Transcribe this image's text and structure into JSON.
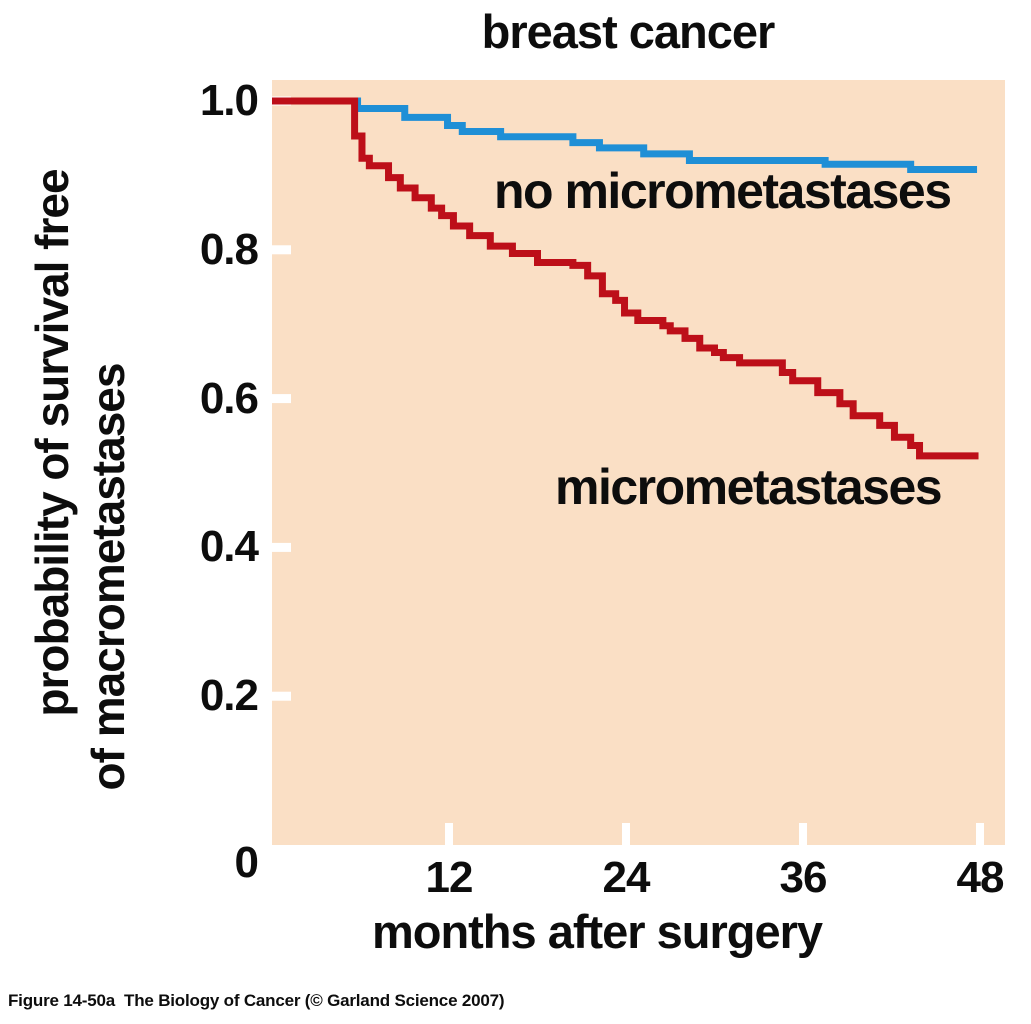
{
  "figure": {
    "title": "breast cancer",
    "caption": "Figure 14-50a  The Biology of Cancer (© Garland Science 2007)"
  },
  "chart_data": {
    "type": "line",
    "subtype": "kaplan_meier_step_survival",
    "title": "breast cancer",
    "xlabel": "months after surgery",
    "ylabel": "probability of survival free of macrometastases",
    "ylabel_lines": [
      "probability of survival free",
      "of macrometastases"
    ],
    "xlim": [
      0,
      49.7
    ],
    "ylim": [
      0,
      1.03
    ],
    "x_ticks": [
      12,
      24,
      36,
      48
    ],
    "x_tick_labels": [
      "12",
      "24",
      "36",
      "48"
    ],
    "y_ticks": [
      1.0,
      0.8,
      0.6,
      0.4,
      0.2
    ],
    "y_tick_labels": [
      "1.0",
      "0.8",
      "0.6",
      "0.4",
      "0.2"
    ],
    "origin_tick_label": "0",
    "grid": false,
    "legend_position": "inline-annotations",
    "plot_bg_color": "#fadfc5",
    "tick_mark_color": "#ffffff",
    "series": [
      {
        "name": "no micrometastases",
        "color": "#1f8fd6",
        "end_month": 47.8,
        "steps": [
          [
            0,
            1.0
          ],
          [
            5.8,
            0.99
          ],
          [
            9.0,
            0.978
          ],
          [
            11.9,
            0.967
          ],
          [
            12.9,
            0.959
          ],
          [
            15.5,
            0.952
          ],
          [
            20.4,
            0.944
          ],
          [
            22.2,
            0.937
          ],
          [
            25.2,
            0.929
          ],
          [
            28.3,
            0.92
          ],
          [
            37.5,
            0.915
          ],
          [
            43.3,
            0.908
          ]
        ]
      },
      {
        "name": "micrometastases",
        "color": "#bd0f19",
        "end_month": 47.9,
        "steps": [
          [
            0,
            1.0
          ],
          [
            5.6,
            0.953
          ],
          [
            6.1,
            0.923
          ],
          [
            6.6,
            0.913
          ],
          [
            7.9,
            0.897
          ],
          [
            8.7,
            0.883
          ],
          [
            9.7,
            0.87
          ],
          [
            10.8,
            0.856
          ],
          [
            11.5,
            0.846
          ],
          [
            12.3,
            0.832
          ],
          [
            13.4,
            0.819
          ],
          [
            14.8,
            0.805
          ],
          [
            16.3,
            0.795
          ],
          [
            18.0,
            0.783
          ],
          [
            20.4,
            0.779
          ],
          [
            21.4,
            0.765
          ],
          [
            22.4,
            0.741
          ],
          [
            23.3,
            0.732
          ],
          [
            23.9,
            0.715
          ],
          [
            24.8,
            0.705
          ],
          [
            26.5,
            0.698
          ],
          [
            27.0,
            0.691
          ],
          [
            28.0,
            0.681
          ],
          [
            29.0,
            0.668
          ],
          [
            30.0,
            0.662
          ],
          [
            30.6,
            0.655
          ],
          [
            31.7,
            0.648
          ],
          [
            34.6,
            0.635
          ],
          [
            35.3,
            0.624
          ],
          [
            37.0,
            0.608
          ],
          [
            38.5,
            0.593
          ],
          [
            39.4,
            0.577
          ],
          [
            41.2,
            0.564
          ],
          [
            42.2,
            0.548
          ],
          [
            43.3,
            0.537
          ],
          [
            43.9,
            0.523
          ]
        ]
      }
    ]
  }
}
